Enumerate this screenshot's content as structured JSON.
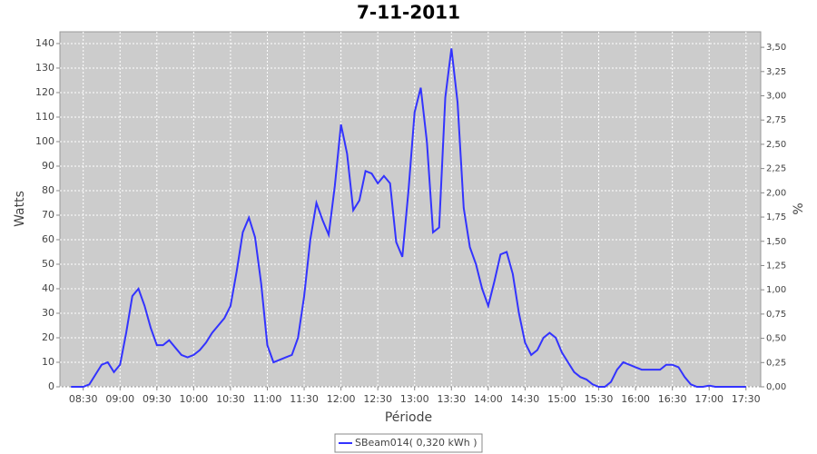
{
  "chart_data": {
    "type": "line",
    "title": "7-11-2011",
    "x_label": "Période",
    "y_label": "Watts",
    "y2_label": "%",
    "x": [
      "08:20",
      "08:25",
      "08:30",
      "08:35",
      "08:40",
      "08:45",
      "08:50",
      "08:55",
      "09:00",
      "09:05",
      "09:10",
      "09:15",
      "09:20",
      "09:25",
      "09:30",
      "09:35",
      "09:40",
      "09:45",
      "09:50",
      "09:55",
      "10:00",
      "10:05",
      "10:10",
      "10:15",
      "10:20",
      "10:25",
      "10:30",
      "10:35",
      "10:40",
      "10:45",
      "10:50",
      "10:55",
      "11:00",
      "11:05",
      "11:10",
      "11:15",
      "11:20",
      "11:25",
      "11:30",
      "11:35",
      "11:40",
      "11:45",
      "11:50",
      "11:55",
      "12:00",
      "12:05",
      "12:10",
      "12:15",
      "12:20",
      "12:25",
      "12:30",
      "12:35",
      "12:40",
      "12:45",
      "12:50",
      "12:55",
      "13:00",
      "13:05",
      "13:10",
      "13:15",
      "13:20",
      "13:25",
      "13:30",
      "13:35",
      "13:40",
      "13:45",
      "13:50",
      "13:55",
      "14:00",
      "14:05",
      "14:10",
      "14:15",
      "14:20",
      "14:25",
      "14:30",
      "14:35",
      "14:40",
      "14:45",
      "14:50",
      "14:55",
      "15:00",
      "15:05",
      "15:10",
      "15:15",
      "15:20",
      "15:25",
      "15:30",
      "15:35",
      "15:40",
      "15:45",
      "15:50",
      "15:55",
      "16:00",
      "16:05",
      "16:10",
      "16:15",
      "16:20",
      "16:25",
      "16:30",
      "16:35",
      "16:40",
      "16:45",
      "16:50",
      "16:55",
      "17:00",
      "17:05",
      "17:10",
      "17:15",
      "17:20",
      "17:25",
      "17:30"
    ],
    "series": [
      {
        "name": "SBeam014( 0,320 kWh )",
        "color": "#3333ff",
        "values": [
          0,
          0,
          0,
          1,
          5,
          9,
          10,
          6,
          9,
          22,
          37,
          40,
          33,
          24,
          17,
          17,
          19,
          16,
          13,
          12,
          13,
          15,
          18,
          22,
          25,
          28,
          33,
          47,
          63,
          69,
          61,
          42,
          17,
          10,
          11,
          12,
          13,
          20,
          37,
          60,
          75,
          68,
          62,
          82,
          107,
          95,
          72,
          76,
          88,
          87,
          83,
          86,
          83,
          59,
          53,
          80,
          112,
          122,
          100,
          63,
          65,
          118,
          138,
          116,
          73,
          57,
          50,
          40,
          33,
          43,
          54,
          55,
          46,
          30,
          18,
          13,
          15,
          20,
          22,
          20,
          14,
          10,
          6,
          4,
          3,
          1,
          0,
          0,
          2,
          7,
          10,
          9,
          8,
          7,
          7,
          7,
          7,
          9,
          9,
          8,
          4,
          1,
          0,
          0,
          0.5,
          0,
          0,
          0,
          0,
          0,
          0
        ]
      }
    ],
    "xlim": [
      "08:11",
      "17:42"
    ],
    "xticks": [
      "08:30",
      "09:00",
      "09:30",
      "10:00",
      "10:30",
      "11:00",
      "11:30",
      "12:00",
      "12:30",
      "13:00",
      "13:30",
      "14:00",
      "14:30",
      "15:00",
      "15:30",
      "16:00",
      "16:30",
      "17:00",
      "17:30"
    ],
    "ylim": [
      0,
      144.8
    ],
    "yticks": [
      0,
      10,
      20,
      30,
      40,
      50,
      60,
      70,
      80,
      90,
      100,
      110,
      120,
      130,
      140
    ],
    "y2lim": [
      0,
      3.66
    ],
    "y2ticks": [
      {
        "value": 0,
        "label": "0,00"
      },
      {
        "value": 0.25,
        "label": "0,25"
      },
      {
        "value": 0.5,
        "label": "0,50"
      },
      {
        "value": 0.75,
        "label": "0,75"
      },
      {
        "value": 1,
        "label": "1,00"
      },
      {
        "value": 1.25,
        "label": "1,25"
      },
      {
        "value": 1.5,
        "label": "1,50"
      },
      {
        "value": 1.75,
        "label": "1,75"
      },
      {
        "value": 2,
        "label": "2,00"
      },
      {
        "value": 2.25,
        "label": "2,25"
      },
      {
        "value": 2.5,
        "label": "2,50"
      },
      {
        "value": 2.75,
        "label": "2,75"
      },
      {
        "value": 3,
        "label": "3,00"
      },
      {
        "value": 3.25,
        "label": "3,25"
      },
      {
        "value": 3.5,
        "label": "3,50"
      }
    ],
    "grid": true,
    "legend": "bottom"
  }
}
